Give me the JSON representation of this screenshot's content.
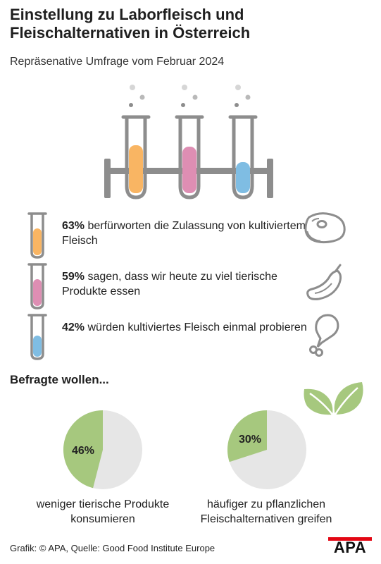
{
  "title": "Einstellung zu Laborfleisch und Fleischalternativen in Österreich",
  "subtitle": "Repräsenative Umfrage vom Februar 2024",
  "colors": {
    "orange": "#f9b563",
    "pink": "#de8eb3",
    "blue": "#7fbde3",
    "green": "#a6c87e",
    "grey": "#8d8d8d",
    "pie_bg": "#e6e6e6",
    "brand_red": "#e30613"
  },
  "stats": [
    {
      "value": "63%",
      "text": " berfürworten die Zulassung von kultiviertem Fleisch",
      "level": 0.63,
      "icon": "steak-icon"
    },
    {
      "value": "59%",
      "text": " sagen, dass wir heute zu viel tierische Produkte essen",
      "level": 0.59,
      "icon": "sausage-icon"
    },
    {
      "value": "42%",
      "text": " würden kultiviertes Fleisch einmal probieren",
      "level": 0.42,
      "icon": "chicken-leg-icon"
    }
  ],
  "section_title": "Befragte wollen...",
  "chart_data": [
    {
      "type": "pie",
      "value": 46,
      "label": "46%",
      "caption": "weniger tierische Produkte konsumieren"
    },
    {
      "type": "pie",
      "value": 30,
      "label": "30%",
      "caption": "häufiger zu pflanzlichen Fleischalternativen greifen"
    }
  ],
  "footer": "Grafik: © APA, Quelle: Good Food Institute Europe",
  "logo": "APA"
}
